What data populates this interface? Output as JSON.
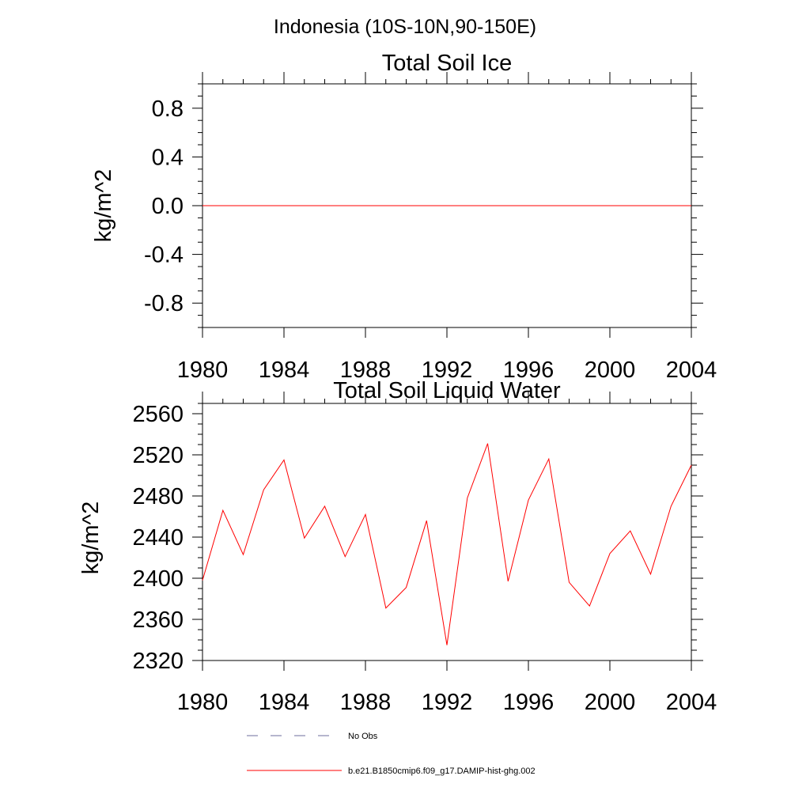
{
  "figure_title": "Indonesia (10S-10N,90-150E)",
  "colors": {
    "model_line": "#ff0000",
    "obs_line": "#6e6e9e",
    "axes": "#000000"
  },
  "chart_data": [
    {
      "type": "line",
      "title": "Total Soil Ice",
      "ylabel": "kg/m^2",
      "xlim": [
        1980,
        2004
      ],
      "ylim": [
        -1.0,
        1.0
      ],
      "x_ticks": [
        1980,
        1984,
        1988,
        1992,
        1996,
        2000,
        2004
      ],
      "y_ticks": [
        0.8,
        0.4,
        0.0,
        -0.4,
        -0.8
      ],
      "y_tick_labels": [
        "0.8",
        "0.4",
        "0.0",
        "-0.4",
        "-0.8"
      ],
      "grid": false,
      "series": [
        {
          "name": "b.e21.B1850cmip6.f09_g17.DAMIP-hist-ghg.002",
          "color": "#ff0000",
          "x": [
            1980,
            1981,
            1982,
            1983,
            1984,
            1985,
            1986,
            1987,
            1988,
            1989,
            1990,
            1991,
            1992,
            1993,
            1994,
            1995,
            1996,
            1997,
            1998,
            1999,
            2000,
            2001,
            2002,
            2003,
            2004
          ],
          "y": [
            0,
            0,
            0,
            0,
            0,
            0,
            0,
            0,
            0,
            0,
            0,
            0,
            0,
            0,
            0,
            0,
            0,
            0,
            0,
            0,
            0,
            0,
            0,
            0,
            0
          ]
        }
      ]
    },
    {
      "type": "line",
      "title": "Total Soil Liquid Water",
      "ylabel": "kg/m^2",
      "xlim": [
        1980,
        2004
      ],
      "ylim": [
        2320,
        2570
      ],
      "x_ticks": [
        1980,
        1984,
        1988,
        1992,
        1996,
        2000,
        2004
      ],
      "y_ticks": [
        2560,
        2520,
        2480,
        2440,
        2400,
        2360,
        2320
      ],
      "y_tick_labels": [
        "2560",
        "2520",
        "2480",
        "2440",
        "2400",
        "2360",
        "2320"
      ],
      "grid": false,
      "series": [
        {
          "name": "b.e21.B1850cmip6.f09_g17.DAMIP-hist-ghg.002",
          "color": "#ff0000",
          "x": [
            1980,
            1981,
            1982,
            1983,
            1984,
            1985,
            1986,
            1987,
            1988,
            1989,
            1990,
            1991,
            1992,
            1993,
            1994,
            1995,
            1996,
            1997,
            1998,
            1999,
            2000,
            2001,
            2002,
            2003,
            2004
          ],
          "y": [
            2398,
            2466,
            2423,
            2486,
            2515,
            2439,
            2470,
            2421,
            2462,
            2371,
            2391,
            2456,
            2335,
            2478,
            2531,
            2397,
            2476,
            2516,
            2396,
            2373,
            2424,
            2446,
            2404,
            2470,
            2510
          ]
        }
      ]
    }
  ],
  "legend": {
    "placement": "bottom",
    "entries": [
      {
        "label": "No Obs",
        "color": "#6e6e9e",
        "style": "dashed"
      },
      {
        "label": "b.e21.B1850cmip6.f09_g17.DAMIP-hist-ghg.002",
        "color": "#ff0000",
        "style": "solid"
      }
    ]
  }
}
